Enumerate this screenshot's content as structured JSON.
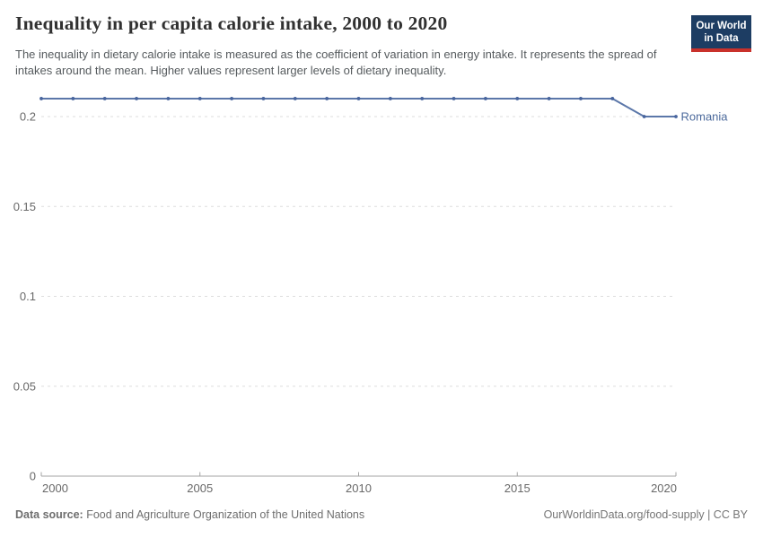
{
  "header": {
    "title": "Inequality in per capita calorie intake, 2000 to 2020",
    "subtitle": "The inequality in dietary calorie intake is measured as the coefficient of variation in energy intake. It represents the spread of intakes around the mean. Higher values represent larger levels of dietary inequality.",
    "logo": {
      "line1": "Our World",
      "line2": "in Data",
      "bg_color": "#1d3d63",
      "stripe_color": "#c9312b"
    }
  },
  "footer": {
    "datasource_label": "Data source:",
    "datasource_value": "Food and Agriculture Organization of the United Nations",
    "link": "OurWorldinData.org/food-supply | CC BY"
  },
  "chart_data": {
    "type": "line",
    "title": "Inequality in per capita calorie intake, 2000 to 2020",
    "xlabel": "",
    "ylabel": "",
    "xlim": [
      2000,
      2020
    ],
    "ylim": [
      0,
      0.21
    ],
    "grid": "horizontal-dashed",
    "legend_position": "line-end-label",
    "x_ticks": [
      {
        "v": 2000,
        "label": "2000"
      },
      {
        "v": 2005,
        "label": "2005"
      },
      {
        "v": 2010,
        "label": "2010"
      },
      {
        "v": 2015,
        "label": "2015"
      },
      {
        "v": 2020,
        "label": "2020"
      }
    ],
    "y_ticks": [
      {
        "v": 0,
        "label": "0"
      },
      {
        "v": 0.05,
        "label": "0.05"
      },
      {
        "v": 0.1,
        "label": "0.1"
      },
      {
        "v": 0.15,
        "label": "0.15"
      },
      {
        "v": 0.2,
        "label": "0.2"
      }
    ],
    "series": [
      {
        "name": "Romania",
        "x": [
          2000,
          2001,
          2002,
          2003,
          2004,
          2005,
          2006,
          2007,
          2008,
          2009,
          2010,
          2011,
          2012,
          2013,
          2014,
          2015,
          2016,
          2017,
          2018,
          2019,
          2020
        ],
        "values": [
          0.21,
          0.21,
          0.21,
          0.21,
          0.21,
          0.21,
          0.21,
          0.21,
          0.21,
          0.21,
          0.21,
          0.21,
          0.21,
          0.21,
          0.21,
          0.21,
          0.21,
          0.21,
          0.21,
          0.2,
          0.2
        ]
      }
    ],
    "colors": {
      "line": "#5b77a9",
      "marker": "#47649d",
      "series_label": "#4c6a9c",
      "grid": "#dddddd",
      "axis": "#a3a3a3",
      "tick_label": "#686868"
    }
  }
}
